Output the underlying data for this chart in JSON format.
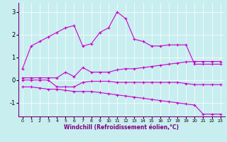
{
  "background_color": "#c8eef0",
  "line_color": "#cc00cc",
  "xlabel": "Windchill (Refroidissement éolien,°C)",
  "x": [
    0,
    1,
    2,
    3,
    4,
    5,
    6,
    7,
    8,
    9,
    10,
    11,
    12,
    13,
    14,
    15,
    16,
    17,
    18,
    19,
    20,
    21,
    22,
    23
  ],
  "series1": [
    0.5,
    1.5,
    1.7,
    1.9,
    2.1,
    2.3,
    2.4,
    1.5,
    1.6,
    2.1,
    2.3,
    3.0,
    2.7,
    1.8,
    1.7,
    1.5,
    1.5,
    1.55,
    1.55,
    1.55,
    0.7,
    0.7,
    0.7,
    0.7
  ],
  "series2": [
    0.1,
    0.1,
    0.1,
    0.1,
    0.1,
    0.35,
    0.15,
    0.55,
    0.35,
    0.35,
    0.35,
    0.45,
    0.5,
    0.5,
    0.55,
    0.6,
    0.65,
    0.7,
    0.75,
    0.8,
    0.82,
    0.82,
    0.82,
    0.82
  ],
  "series3": [
    0.0,
    0.0,
    0.0,
    0.0,
    -0.3,
    -0.3,
    -0.3,
    -0.1,
    -0.05,
    -0.05,
    -0.05,
    -0.1,
    -0.1,
    -0.1,
    -0.1,
    -0.1,
    -0.1,
    -0.1,
    -0.1,
    -0.15,
    -0.2,
    -0.2,
    -0.2,
    -0.2
  ],
  "series4": [
    -0.3,
    -0.3,
    -0.35,
    -0.4,
    -0.4,
    -0.45,
    -0.5,
    -0.5,
    -0.5,
    -0.55,
    -0.6,
    -0.65,
    -0.7,
    -0.75,
    -0.8,
    -0.85,
    -0.9,
    -0.95,
    -1.0,
    -1.05,
    -1.1,
    -1.5,
    -1.5,
    -1.5
  ],
  "ylim": [
    -1.6,
    3.4
  ],
  "yticks": [
    -1,
    0,
    1,
    2,
    3
  ],
  "xticks": [
    0,
    1,
    2,
    3,
    4,
    5,
    6,
    7,
    8,
    9,
    10,
    11,
    12,
    13,
    14,
    15,
    16,
    17,
    18,
    19,
    20,
    21,
    22,
    23
  ]
}
